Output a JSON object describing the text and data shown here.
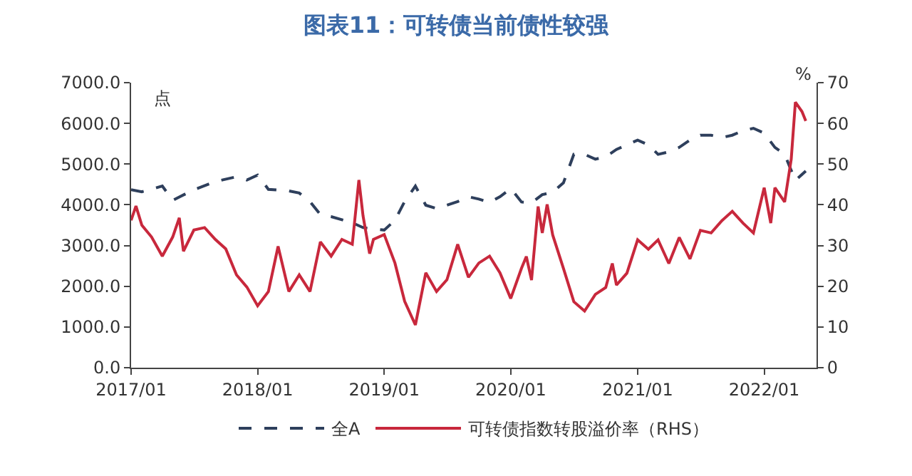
{
  "chart_data": {
    "type": "line",
    "title": "图表11：可转债当前债性较强",
    "ylabel": "点",
    "y2label": "%",
    "xlim": [
      "2017-01-01",
      "2022-06-01"
    ],
    "xticks": [
      {
        "value": "2017-01-01",
        "label": "2017/01"
      },
      {
        "value": "2018-01-01",
        "label": "2018/01"
      },
      {
        "value": "2019-01-01",
        "label": "2019/01"
      },
      {
        "value": "2020-01-01",
        "label": "2020/01"
      },
      {
        "value": "2021-01-01",
        "label": "2021/01"
      },
      {
        "value": "2022-01-01",
        "label": "2022/01"
      }
    ],
    "ylim": [
      0,
      7000
    ],
    "yticks": [
      {
        "value": 0,
        "label": "0.0"
      },
      {
        "value": 1000,
        "label": "1000.0"
      },
      {
        "value": 2000,
        "label": "2000.0"
      },
      {
        "value": 3000,
        "label": "3000.0"
      },
      {
        "value": 4000,
        "label": "4000.0"
      },
      {
        "value": 5000,
        "label": "5000.0"
      },
      {
        "value": 6000,
        "label": "6000.0"
      },
      {
        "value": 7000,
        "label": "7000.0"
      }
    ],
    "y2lim": [
      0,
      70
    ],
    "y2ticks": [
      0,
      10,
      20,
      30,
      40,
      50,
      60,
      70
    ],
    "legend": "bottom",
    "series": [
      {
        "name": "全A",
        "color": "#2e3f5c",
        "line_style": "dashed",
        "x": [
          "2017-01-01",
          "2017-02-01",
          "2017-04-01",
          "2017-05-01",
          "2017-07-01",
          "2017-09-01",
          "2017-11-01",
          "2017-12-01",
          "2018-01-01",
          "2018-02-01",
          "2018-04-01",
          "2018-05-01",
          "2018-06-01",
          "2018-07-01",
          "2018-08-01",
          "2018-10-01",
          "2018-11-01",
          "2019-01-01",
          "2019-02-01",
          "2019-03-01",
          "2019-04-01",
          "2019-05-01",
          "2019-06-01",
          "2019-08-01",
          "2019-09-01",
          "2019-10-01",
          "2019-11-01",
          "2019-12-01",
          "2020-01-01",
          "2020-02-01",
          "2020-03-01",
          "2020-04-01",
          "2020-05-01",
          "2020-06-01",
          "2020-07-01",
          "2020-08-01",
          "2020-09-01",
          "2020-10-01",
          "2020-11-01",
          "2020-12-01",
          "2021-01-01",
          "2021-02-01",
          "2021-03-01",
          "2021-04-01",
          "2021-05-01",
          "2021-06-01",
          "2021-07-01",
          "2021-08-01",
          "2021-09-01",
          "2021-10-01",
          "2021-11-01",
          "2021-12-01",
          "2022-01-01",
          "2022-02-01",
          "2022-03-01",
          "2022-03-15",
          "2022-04-01",
          "2022-05-01"
        ],
        "values": [
          4370,
          4320,
          4460,
          4110,
          4370,
          4570,
          4690,
          4610,
          4730,
          4380,
          4340,
          4290,
          4080,
          3760,
          3710,
          3560,
          3440,
          3380,
          3620,
          4080,
          4460,
          3990,
          3910,
          4080,
          4200,
          4140,
          4060,
          4200,
          4400,
          4070,
          4050,
          4250,
          4310,
          4540,
          5240,
          5240,
          5120,
          5180,
          5360,
          5470,
          5590,
          5470,
          5240,
          5300,
          5410,
          5590,
          5710,
          5710,
          5650,
          5710,
          5820,
          5880,
          5760,
          5410,
          5240,
          4950,
          4600,
          4830
        ]
      },
      {
        "name": "可转债指数转股溢价率（RHS）",
        "color": "#c8283c",
        "line_style": "solid",
        "axis": "y2",
        "x": [
          "2017-01-01",
          "2017-01-15",
          "2017-02-01",
          "2017-03-01",
          "2017-04-01",
          "2017-05-01",
          "2017-05-20",
          "2017-06-01",
          "2017-07-01",
          "2017-08-01",
          "2017-09-01",
          "2017-10-01",
          "2017-11-01",
          "2017-12-01",
          "2018-01-01",
          "2018-02-01",
          "2018-03-01",
          "2018-04-01",
          "2018-05-01",
          "2018-06-01",
          "2018-07-01",
          "2018-08-01",
          "2018-09-01",
          "2018-10-01",
          "2018-10-20",
          "2018-11-01",
          "2018-11-20",
          "2018-12-01",
          "2019-01-01",
          "2019-02-01",
          "2019-03-01",
          "2019-04-01",
          "2019-05-01",
          "2019-06-01",
          "2019-07-01",
          "2019-08-01",
          "2019-09-01",
          "2019-10-01",
          "2019-11-01",
          "2019-12-01",
          "2020-01-01",
          "2020-02-01",
          "2020-02-15",
          "2020-03-01",
          "2020-03-20",
          "2020-04-01",
          "2020-04-15",
          "2020-05-01",
          "2020-06-01",
          "2020-07-01",
          "2020-08-01",
          "2020-09-01",
          "2020-10-01",
          "2020-10-20",
          "2020-11-01",
          "2020-12-01",
          "2021-01-01",
          "2021-02-01",
          "2021-03-01",
          "2021-04-01",
          "2021-05-01",
          "2021-06-01",
          "2021-07-01",
          "2021-08-01",
          "2021-09-01",
          "2021-10-01",
          "2021-11-01",
          "2021-12-01",
          "2022-01-01",
          "2022-01-20",
          "2022-02-01",
          "2022-03-01",
          "2022-03-20",
          "2022-04-01",
          "2022-04-20",
          "2022-05-01"
        ],
        "values": [
          36.2,
          39.7,
          35.0,
          32.1,
          27.4,
          32.1,
          36.8,
          28.6,
          33.8,
          34.4,
          31.5,
          29.2,
          22.8,
          19.8,
          15.2,
          18.7,
          29.8,
          18.7,
          22.8,
          18.7,
          30.9,
          27.4,
          31.5,
          30.3,
          46.1,
          37.3,
          28.0,
          31.5,
          32.7,
          25.7,
          16.3,
          10.5,
          23.3,
          18.7,
          21.6,
          30.3,
          22.2,
          25.7,
          27.4,
          23.3,
          17.0,
          24.4,
          27.3,
          21.5,
          39.6,
          33.1,
          40.1,
          32.6,
          24.4,
          16.2,
          13.9,
          18.0,
          19.7,
          25.6,
          20.3,
          23.2,
          31.4,
          29.1,
          31.4,
          25.6,
          32.0,
          26.7,
          33.7,
          33.1,
          36.1,
          38.4,
          35.5,
          33.1,
          44.2,
          35.5,
          44.2,
          40.7,
          51.2,
          65.2,
          62.9,
          60.6
        ]
      }
    ]
  }
}
